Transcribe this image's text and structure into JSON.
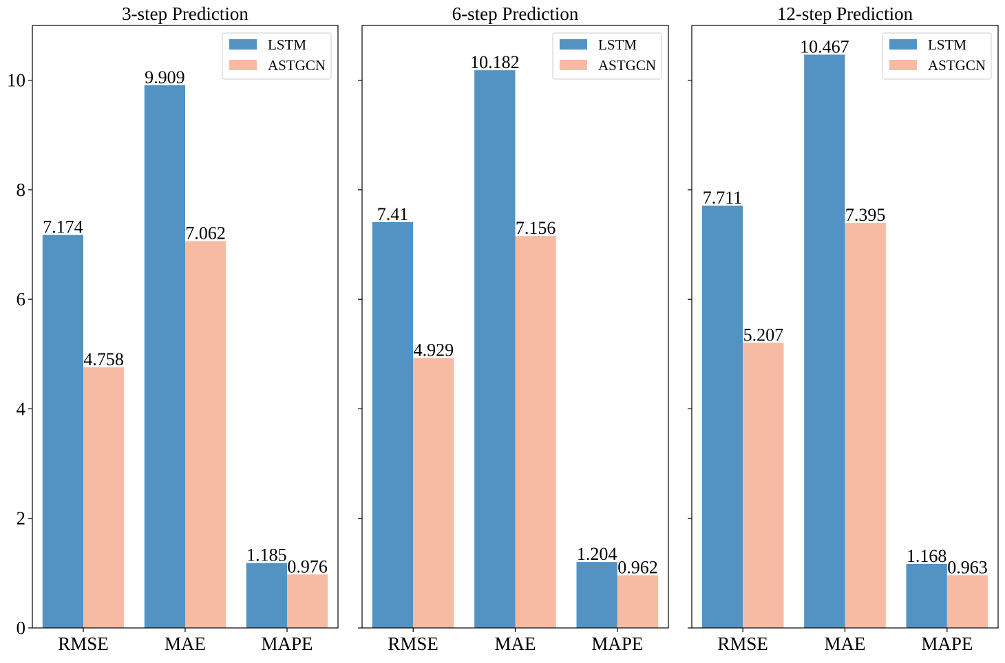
{
  "chart_data": [
    {
      "type": "bar",
      "title": "3-step Prediction",
      "categories": [
        "RMSE",
        "MAE",
        "MAPE"
      ],
      "series": [
        {
          "name": "LSTM",
          "values": [
            7.174,
            9.909,
            1.185
          ],
          "value_labels": [
            "7.174",
            "9.909",
            "1.185"
          ]
        },
        {
          "name": "ASTGCN",
          "values": [
            4.758,
            7.062,
            0.976
          ],
          "value_labels": [
            "4.758",
            "7.062",
            "0.976"
          ]
        }
      ],
      "ylim": [
        0,
        11
      ],
      "yticks": [
        0,
        2,
        4,
        6,
        8,
        10
      ],
      "ytick_labels": [
        "0",
        "2",
        "4",
        "6",
        "8",
        "10"
      ],
      "show_ytick_labels": true,
      "legend": "top-right",
      "grid": false
    },
    {
      "type": "bar",
      "title": "6-step Prediction",
      "categories": [
        "RMSE",
        "MAE",
        "MAPE"
      ],
      "series": [
        {
          "name": "LSTM",
          "values": [
            7.41,
            10.182,
            1.204
          ],
          "value_labels": [
            "7.41",
            "10.182",
            "1.204"
          ]
        },
        {
          "name": "ASTGCN",
          "values": [
            4.929,
            7.156,
            0.962
          ],
          "value_labels": [
            "4.929",
            "7.156",
            "0.962"
          ]
        }
      ],
      "ylim": [
        0,
        11
      ],
      "yticks": [
        0,
        2,
        4,
        6,
        8,
        10
      ],
      "ytick_labels": [
        "0",
        "2",
        "4",
        "6",
        "8",
        "10"
      ],
      "show_ytick_labels": false,
      "legend": "top-right",
      "grid": false
    },
    {
      "type": "bar",
      "title": "12-step Prediction",
      "categories": [
        "RMSE",
        "MAE",
        "MAPE"
      ],
      "series": [
        {
          "name": "LSTM",
          "values": [
            7.711,
            10.467,
            1.168
          ],
          "value_labels": [
            "7.711",
            "10.467",
            "1.168"
          ]
        },
        {
          "name": "ASTGCN",
          "values": [
            5.207,
            7.395,
            0.963
          ],
          "value_labels": [
            "5.207",
            "7.395",
            "0.963"
          ]
        }
      ],
      "ylim": [
        0,
        11
      ],
      "yticks": [
        0,
        2,
        4,
        6,
        8,
        10
      ],
      "ytick_labels": [
        "0",
        "2",
        "4",
        "6",
        "8",
        "10"
      ],
      "show_ytick_labels": false,
      "legend": "top-right",
      "grid": false
    }
  ],
  "colors": {
    "LSTM": "#5293c4",
    "ASTGCN": "#f7bba3"
  }
}
